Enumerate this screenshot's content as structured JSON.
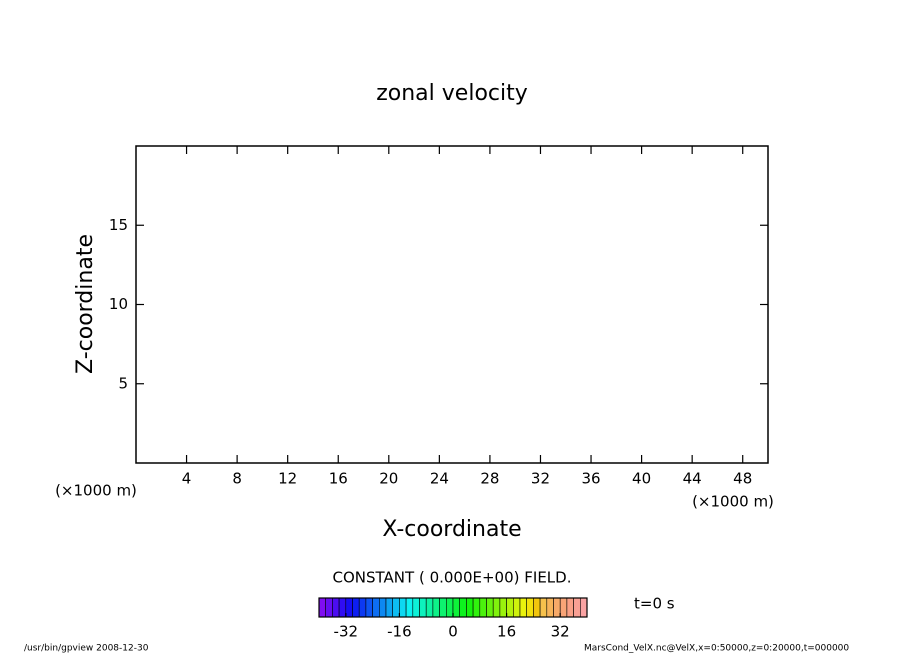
{
  "chart_data": {
    "type": "contour",
    "title": "zonal velocity",
    "xlabel": "X-coordinate",
    "ylabel": "Z-coordinate",
    "unit_label": "(×1000 m)",
    "xlim": [
      0,
      50
    ],
    "xticks": [
      4,
      8,
      12,
      16,
      20,
      24,
      28,
      32,
      36,
      40,
      44,
      48
    ],
    "ylim": [
      0,
      20
    ],
    "yticks": [
      5,
      10,
      15
    ],
    "field_note": "CONSTANT ( 0.000E+00) FIELD.",
    "time_label": "t=0 s",
    "clim": [
      -40,
      40
    ],
    "cticks": [
      -32,
      -16,
      0,
      16,
      32
    ],
    "footer_left": "/usr/bin/gpview  2008-12-30",
    "footer_right": "MarsCond_VelX.nc@VelX,x=0:50000,z=0:20000,t=000000"
  }
}
